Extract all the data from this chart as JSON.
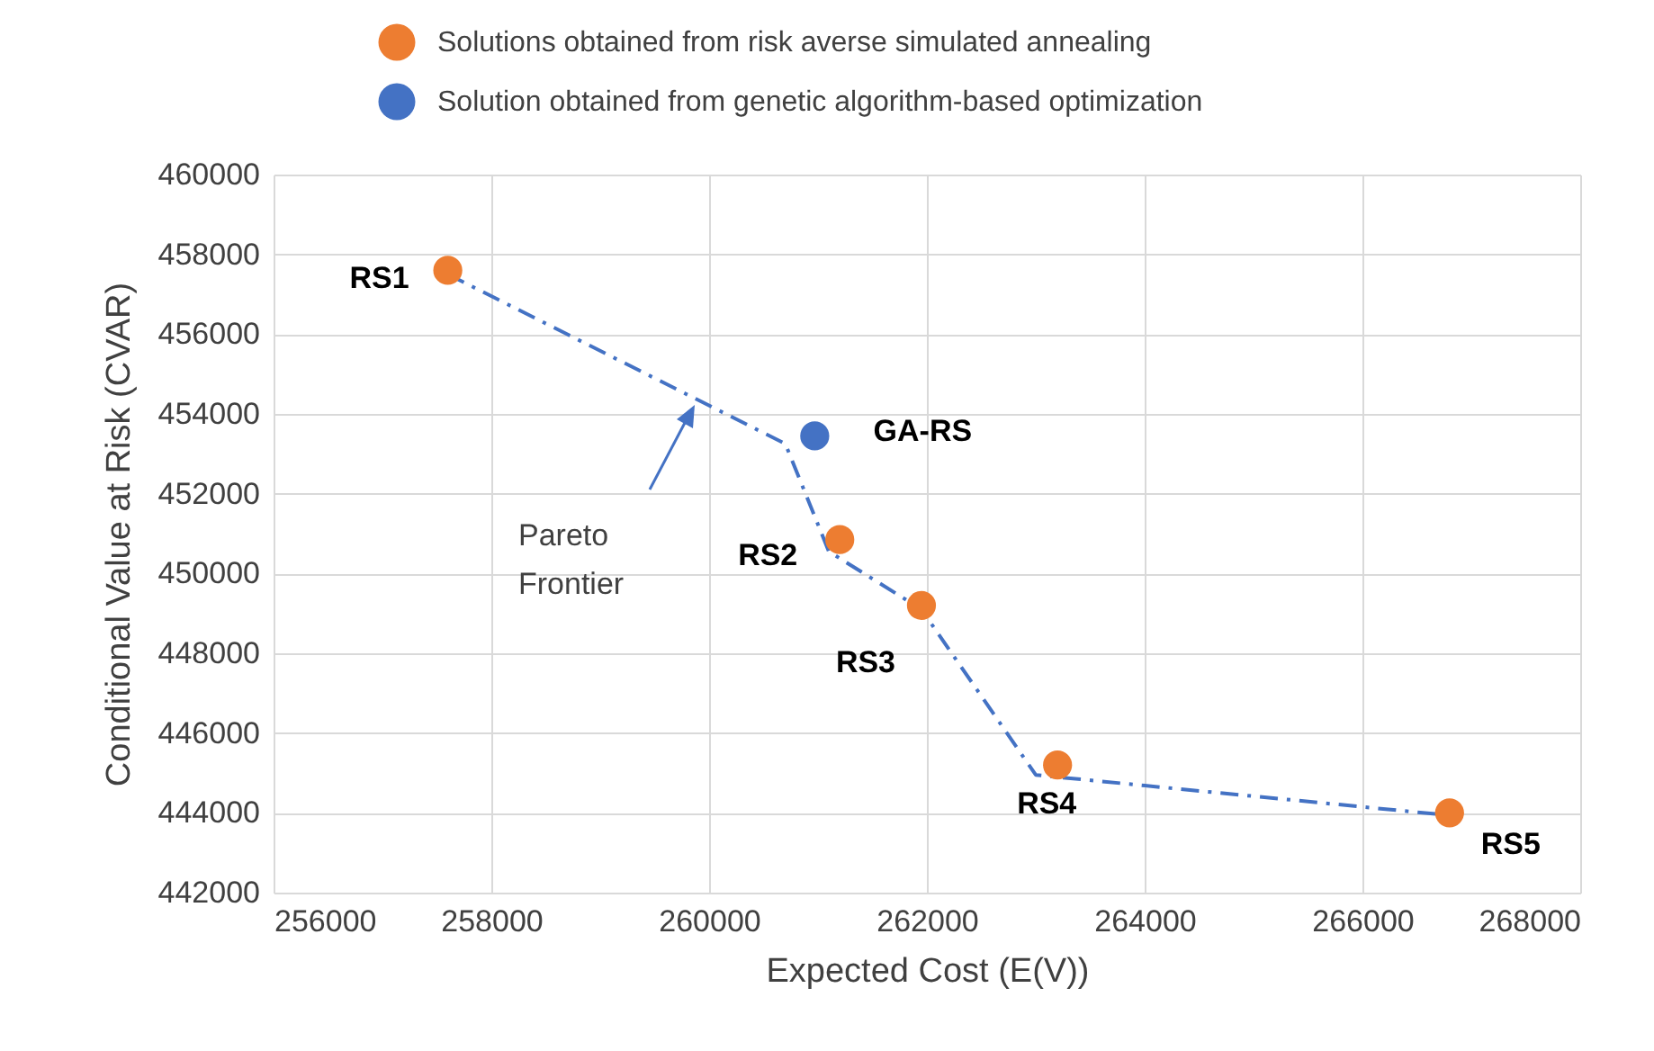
{
  "chart_data": {
    "type": "scatter",
    "xlabel": "Expected Cost (E(V))",
    "ylabel": "Conditional Value at Risk (CVAR)",
    "xlim": [
      256000,
      268000
    ],
    "xticks": [
      256000,
      258000,
      260000,
      262000,
      264000,
      266000,
      268000
    ],
    "ylim": [
      442000,
      460000
    ],
    "yticks": [
      442000,
      444000,
      446000,
      448000,
      450000,
      452000,
      454000,
      456000,
      458000,
      460000
    ],
    "grid": true,
    "legend": "top",
    "marker": "circle",
    "series": [
      {
        "name": "Solutions obtained from risk averse simulated annealing",
        "type": "scatter",
        "color": "#ed7d31",
        "x": [
          257600,
          261200,
          261950,
          263200,
          266800
        ],
        "values": [
          457600,
          450850,
          449200,
          445200,
          444000
        ]
      },
      {
        "name": "Solution obtained from genetic algorithm-based optimization",
        "type": "scatter",
        "color": "#4472c4",
        "x": [
          260970
        ],
        "values": [
          453450
        ]
      },
      {
        "type": "line",
        "color": "#4472c4",
        "line_style": "dashed",
        "marker": "none",
        "x": [
          257600,
          260700,
          261100,
          261950,
          263000,
          266750
        ],
        "values": [
          457500,
          453250,
          450550,
          449100,
          444950,
          443950
        ]
      }
    ],
    "annotations": [
      {
        "text": "RS1",
        "x": 257600,
        "y": 457600
      },
      {
        "text": "GA-RS",
        "x": 260970,
        "y": 453450
      },
      {
        "text": "RS2",
        "x": 261200,
        "y": 450850
      },
      {
        "text": "RS3",
        "x": 261950,
        "y": 449200
      },
      {
        "text": "RS4",
        "x": 263200,
        "y": 445200
      },
      {
        "text": "RS5",
        "x": 266800,
        "y": 444000
      },
      "Pareto Frontier"
    ]
  }
}
